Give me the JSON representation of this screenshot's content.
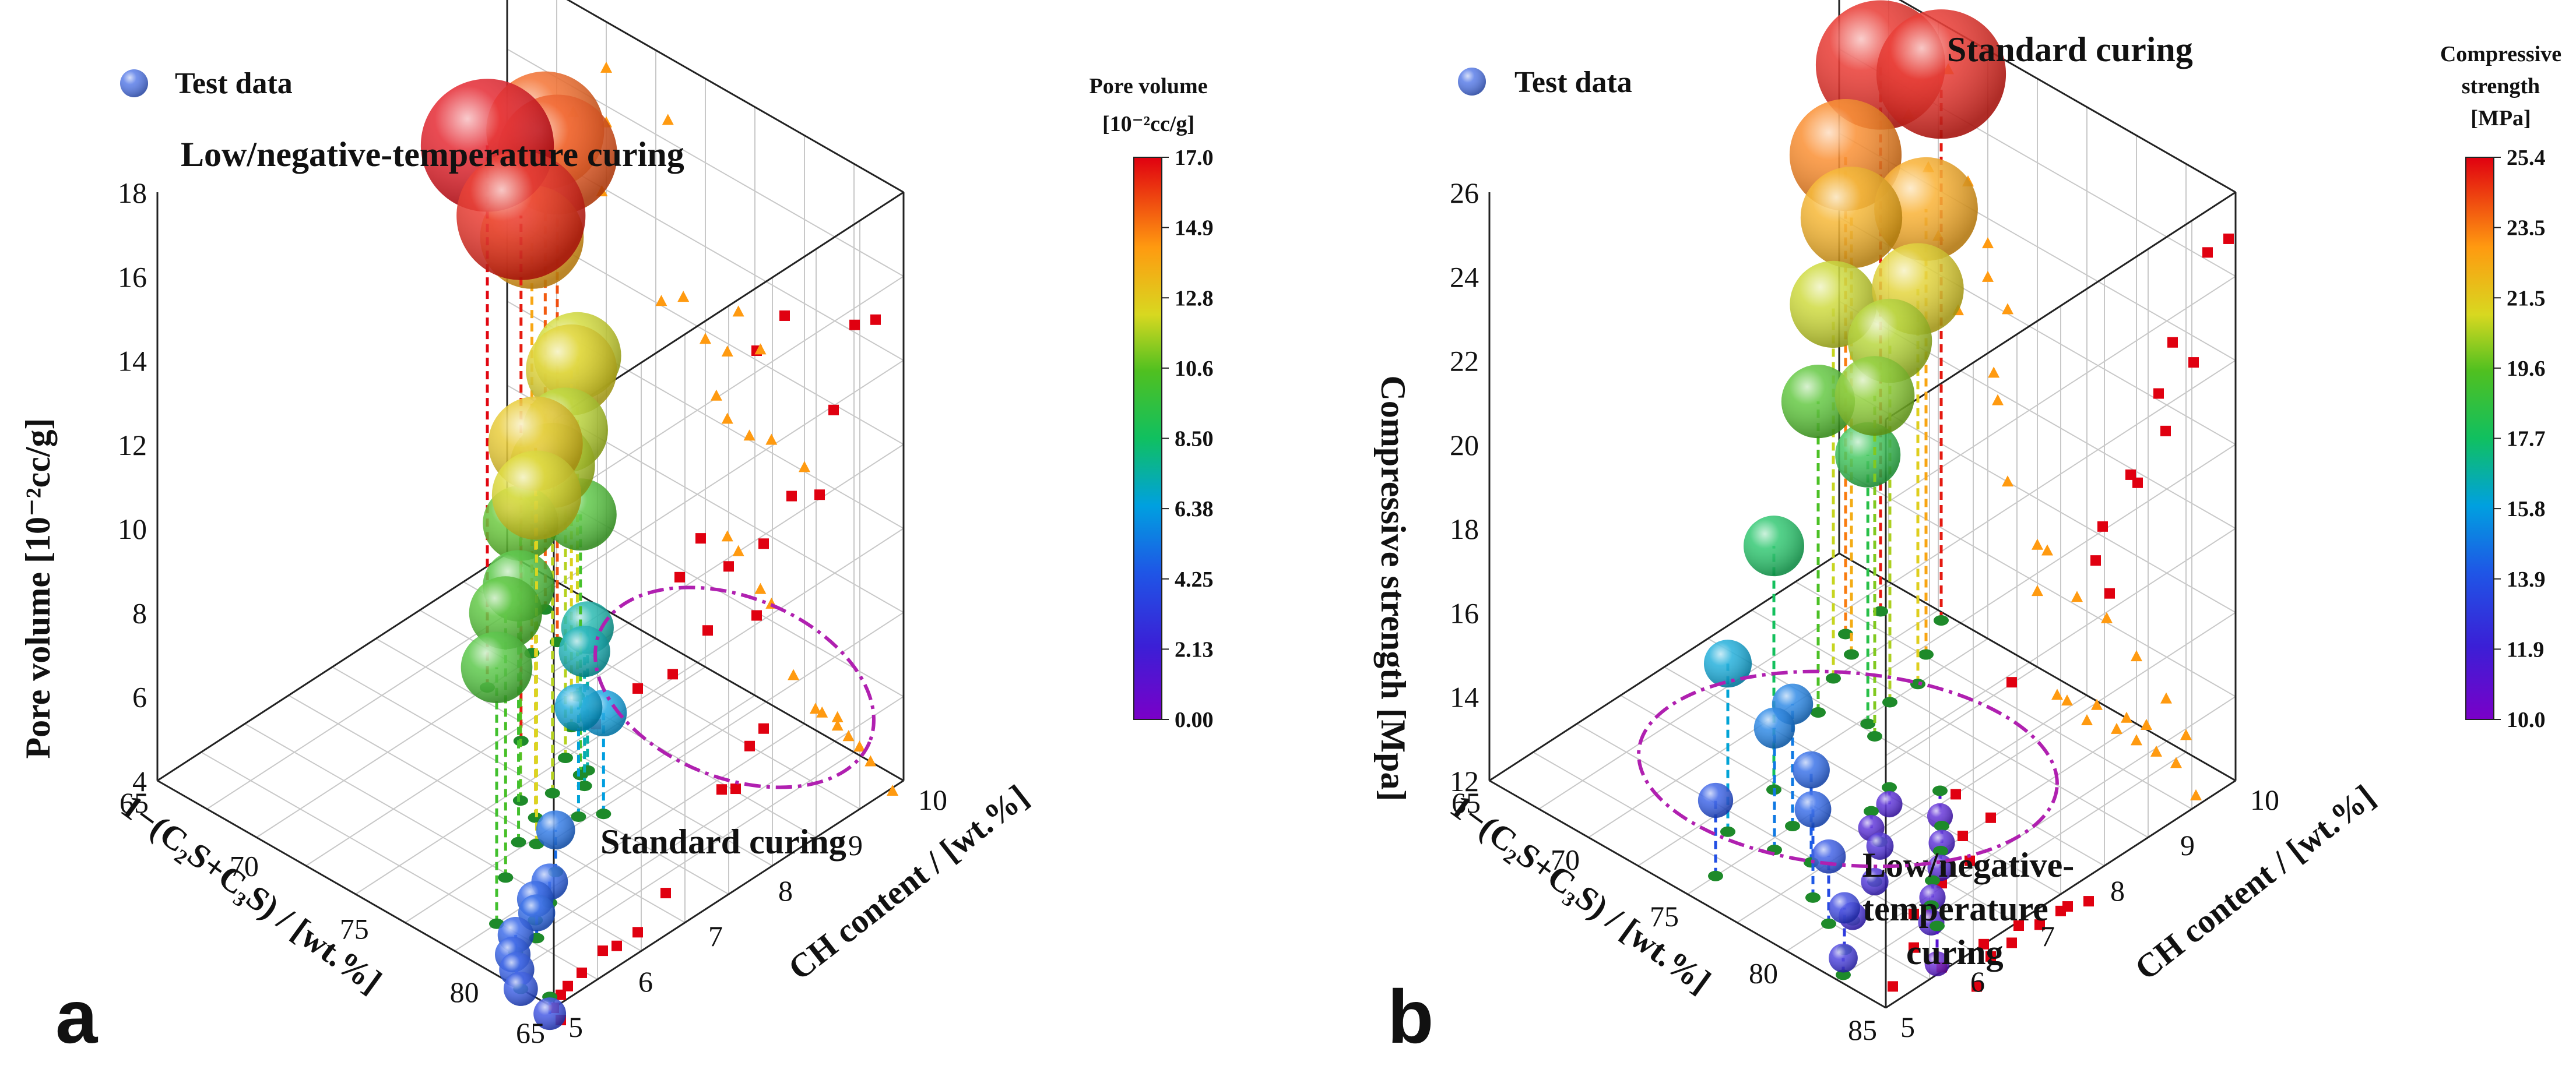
{
  "chart_data": [
    {
      "type": "scatter",
      "panel": "a",
      "legend": "Test data",
      "region_labels": [
        "Low/negative-temperature curing",
        "Standard curing"
      ],
      "xlabel": "1−(C₂S+C₃S) / [wt.%]",
      "ylabel": "CH content / [wt.%]",
      "zlabel": "Pore volume [10⁻²cc/g]",
      "xlim": [
        65,
        83
      ],
      "ylim": [
        5,
        10
      ],
      "zlim": [
        4,
        18
      ],
      "x_ticks": [
        "65",
        "70",
        "75",
        "80"
      ],
      "y_ticks": [
        "5",
        "6",
        "7",
        "8",
        "9",
        "10"
      ],
      "z_ticks": [
        "4",
        "6",
        "8",
        "10",
        "12",
        "14",
        "16",
        "18"
      ],
      "x_back_tick": "65",
      "colorbar": {
        "title": [
          "Pore volume",
          "[10⁻²cc/g]"
        ],
        "ticks": [
          "17.0",
          "14.9",
          "12.8",
          "10.6",
          "8.50",
          "6.38",
          "4.25",
          "2.13",
          "0.00"
        ],
        "min": 0,
        "max": 17
      },
      "points": [
        {
          "x": 68.0,
          "y": 9.6,
          "z": 15.4
        },
        {
          "x": 69.5,
          "y": 9.3,
          "z": 15.6
        },
        {
          "x": 69.3,
          "y": 9.0,
          "z": 13.9
        },
        {
          "x": 69.5,
          "y": 8.3,
          "z": 16.9
        },
        {
          "x": 72.0,
          "y": 8.8,
          "z": 12.1
        },
        {
          "x": 73.0,
          "y": 8.4,
          "z": 12.5
        },
        {
          "x": 74.0,
          "y": 8.0,
          "z": 11.8
        },
        {
          "x": 75.0,
          "y": 7.9,
          "z": 10.2
        },
        {
          "x": 75.0,
          "y": 7.5,
          "z": 11.8
        },
        {
          "x": 75.5,
          "y": 7.1,
          "z": 12.9
        },
        {
          "x": 76.5,
          "y": 6.8,
          "z": 12.3
        },
        {
          "x": 74.5,
          "y": 7.2,
          "z": 10.6
        },
        {
          "x": 76.0,
          "y": 6.7,
          "z": 10.1
        },
        {
          "x": 77.0,
          "y": 6.2,
          "z": 10.3
        },
        {
          "x": 78.5,
          "y": 5.6,
          "z": 10.1
        },
        {
          "x": 75.0,
          "y": 8.0,
          "z": 7.4
        },
        {
          "x": 75.5,
          "y": 7.8,
          "z": 7.2
        },
        {
          "x": 76.5,
          "y": 7.4,
          "z": 6.6
        },
        {
          "x": 77.0,
          "y": 7.6,
          "z": 6.4
        },
        {
          "x": 72.3,
          "y": 7.9,
          "z": 16.5
        },
        {
          "x": 78.0,
          "y": 6.6,
          "z": 5.0
        },
        {
          "x": 79.0,
          "y": 6.2,
          "z": 4.5
        },
        {
          "x": 79.3,
          "y": 5.9,
          "z": 4.5
        },
        {
          "x": 80.0,
          "y": 5.7,
          "z": 4.6
        },
        {
          "x": 80.0,
          "y": 5.4,
          "z": 4.4
        },
        {
          "x": 80.5,
          "y": 5.2,
          "z": 4.3
        },
        {
          "x": 81.0,
          "y": 5.1,
          "z": 4.2
        },
        {
          "x": 81.5,
          "y": 5.0,
          "z": 4.0
        },
        {
          "x": 82.5,
          "y": 5.1,
          "z": 3.6
        }
      ]
    },
    {
      "type": "scatter",
      "panel": "b",
      "legend": "Test data",
      "region_labels": [
        "Standard curing",
        "Low/negative-",
        "temperature",
        "curing"
      ],
      "xlabel": "1−(C₂S+C₃S) / [wt.%]",
      "ylabel": "CH content / [wt.%]",
      "zlabel": "Compressive strength [Mpa]",
      "xlim": [
        65,
        85
      ],
      "ylim": [
        5,
        10
      ],
      "zlim": [
        12,
        26
      ],
      "x_ticks": [
        "65",
        "70",
        "75",
        "80",
        "85"
      ],
      "y_ticks": [
        "5",
        "6",
        "7",
        "8",
        "9",
        "10"
      ],
      "z_ticks": [
        "12",
        "14",
        "16",
        "18",
        "20",
        "22",
        "24",
        "26"
      ],
      "colorbar": {
        "title": [
          "Compressive",
          "strength",
          "[MPa]"
        ],
        "ticks": [
          "25.4",
          "23.5",
          "21.5",
          "19.6",
          "17.7",
          "15.8",
          "13.9",
          "11.9",
          "10.0"
        ],
        "min": 10,
        "max": 25.4
      },
      "points": [
        {
          "x": 68.5,
          "y": 9.6,
          "z": 25.0
        },
        {
          "x": 68.5,
          "y": 9.1,
          "z": 23.4
        },
        {
          "x": 69.5,
          "y": 8.9,
          "z": 22.4
        },
        {
          "x": 70.0,
          "y": 8.5,
          "z": 20.9
        },
        {
          "x": 71.0,
          "y": 8.0,
          "z": 19.4
        },
        {
          "x": 70.5,
          "y": 9.9,
          "z": 25.0
        },
        {
          "x": 71.5,
          "y": 9.4,
          "z": 22.6
        },
        {
          "x": 72.5,
          "y": 9.0,
          "z": 21.4
        },
        {
          "x": 72.5,
          "y": 8.6,
          "z": 20.6
        },
        {
          "x": 73.5,
          "y": 8.1,
          "z": 20.1
        },
        {
          "x": 72.8,
          "y": 8.2,
          "z": 18.4
        },
        {
          "x": 73.0,
          "y": 6.8,
          "z": 17.8
        },
        {
          "x": 73.5,
          "y": 6.0,
          "z": 16.0
        },
        {
          "x": 75.0,
          "y": 6.5,
          "z": 14.9
        },
        {
          "x": 75.5,
          "y": 6.1,
          "z": 14.9
        },
        {
          "x": 75.0,
          "y": 5.4,
          "z": 13.8
        },
        {
          "x": 77.0,
          "y": 6.2,
          "z": 14.2
        },
        {
          "x": 78.5,
          "y": 5.8,
          "z": 14.1
        },
        {
          "x": 80.0,
          "y": 5.6,
          "z": 13.6
        },
        {
          "x": 81.5,
          "y": 5.4,
          "z": 13.0
        },
        {
          "x": 82.5,
          "y": 5.1,
          "z": 12.4
        },
        {
          "x": 80.5,
          "y": 5.8,
          "z": 12.1
        },
        {
          "x": 79.5,
          "y": 6.4,
          "z": 12.0
        },
        {
          "x": 78.0,
          "y": 6.9,
          "z": 11.9
        },
        {
          "x": 76.5,
          "y": 7.2,
          "z": 11.6
        },
        {
          "x": 76.0,
          "y": 7.6,
          "z": 11.6
        },
        {
          "x": 77.5,
          "y": 7.9,
          "z": 11.4
        },
        {
          "x": 79.0,
          "y": 7.5,
          "z": 11.6
        },
        {
          "x": 80.0,
          "y": 7.2,
          "z": 11.6
        },
        {
          "x": 81.0,
          "y": 6.8,
          "z": 11.6
        },
        {
          "x": 82.0,
          "y": 6.5,
          "z": 11.6
        },
        {
          "x": 83.0,
          "y": 6.3,
          "z": 11.1
        }
      ]
    }
  ],
  "panel_labels": [
    "a",
    "b"
  ]
}
